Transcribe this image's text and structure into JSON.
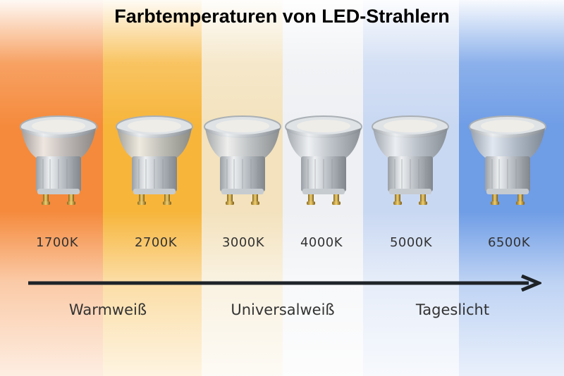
{
  "title": "Farbtemperaturen von LED-Strahlern",
  "colors": [
    "#f58a3c",
    "#f7b53a",
    "#f3e2bd",
    "#eef0f3",
    "#c9d8f2",
    "#6f9de6"
  ],
  "bulbs": [
    {
      "label": "1700K"
    },
    {
      "label": "2700K"
    },
    {
      "label": "3000K"
    },
    {
      "label": "4000K"
    },
    {
      "label": "5000K"
    },
    {
      "label": "6500K"
    }
  ],
  "categories": [
    {
      "label": "Warmweiß"
    },
    {
      "label": "Universalweiß"
    },
    {
      "label": "Tageslicht"
    }
  ]
}
